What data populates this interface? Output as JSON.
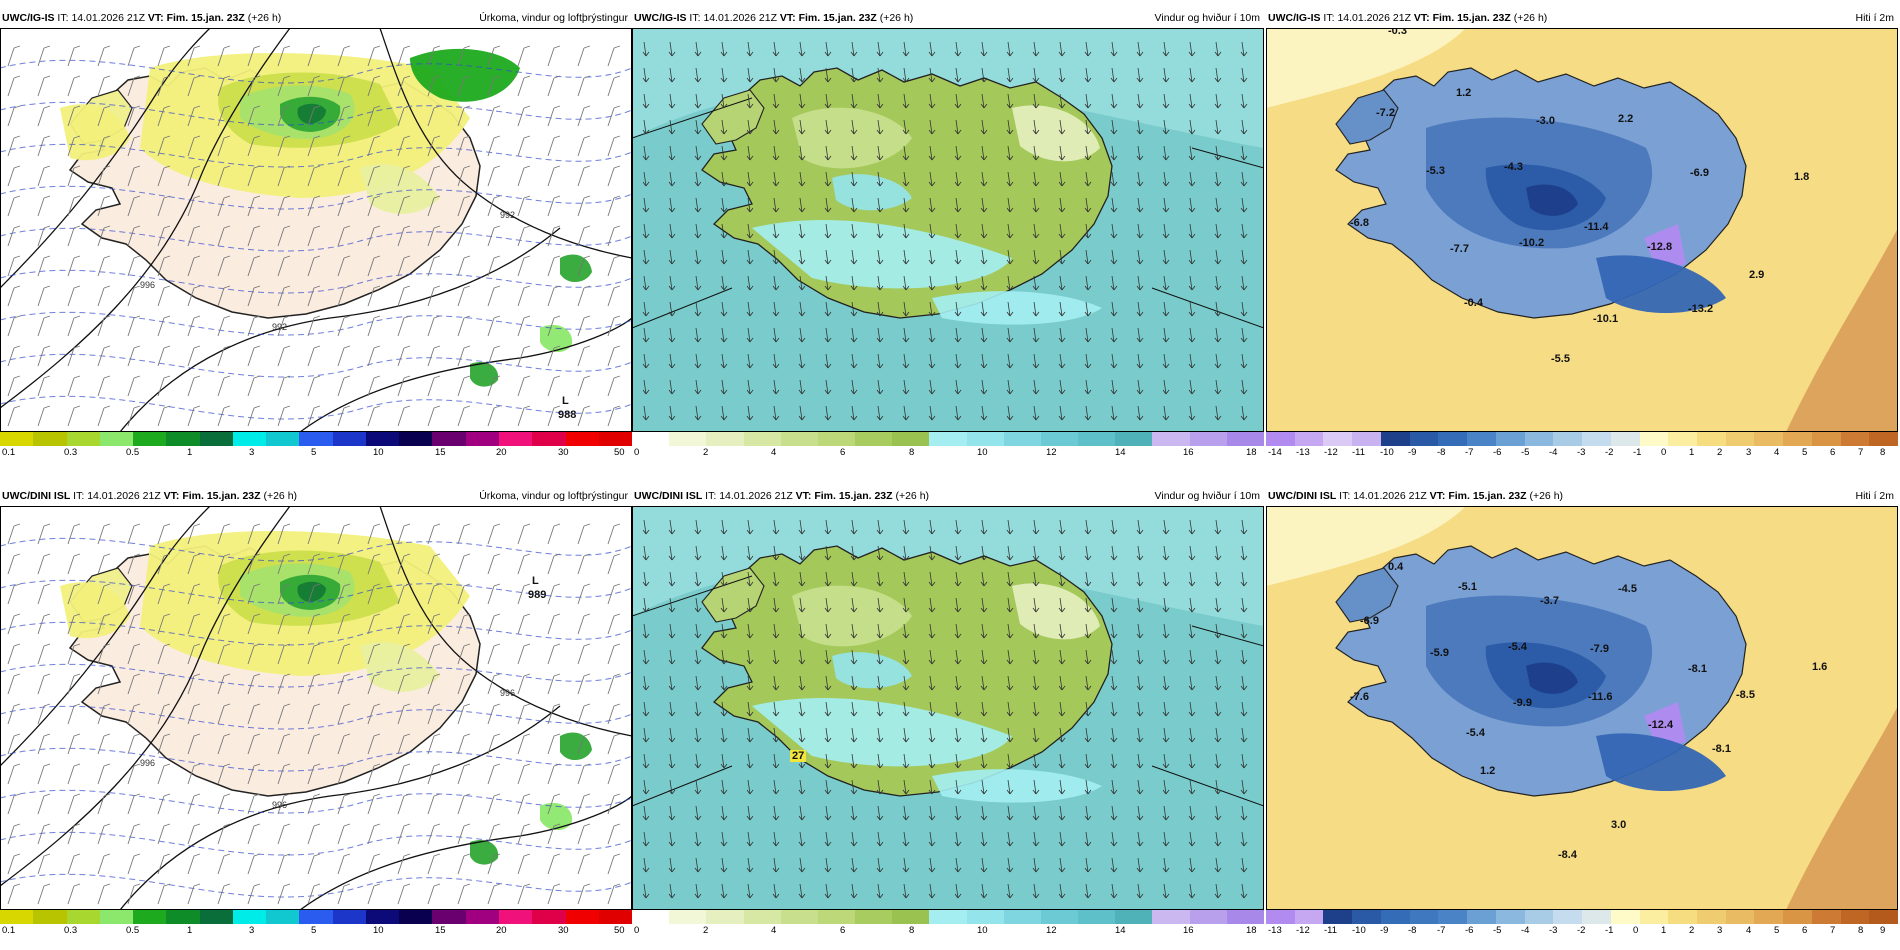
{
  "rows": [
    {
      "model": "UWC/IG-IS",
      "panels": [
        {
          "id": "precip",
          "model": "UWC/IG-IS",
          "it_label": "IT:",
          "it_value": "14.01.2026 21Z",
          "vt_label": "VT:",
          "vt_value": "Fim. 15.jan. 23Z",
          "lead": "(+26 h)",
          "title": "Úrkoma, vindur og loftþrýstingur",
          "low_label": "L",
          "low_value": "988",
          "isobar_labels": [
            "992",
            "996",
            "992"
          ],
          "colorbar": "precip"
        },
        {
          "id": "wind",
          "model": "UWC/IG-IS",
          "it_label": "IT:",
          "it_value": "14.01.2026 21Z",
          "vt_label": "VT:",
          "vt_value": "Fim. 15.jan. 23Z",
          "lead": "(+26 h)",
          "title": "Vindur og hviður í 10m",
          "colorbar": "wind"
        },
        {
          "id": "temp",
          "model": "UWC/IG-IS",
          "it_label": "IT:",
          "it_value": "14.01.2026 21Z",
          "vt_label": "VT:",
          "vt_value": "Fim. 15.jan. 23Z",
          "lead": "(+26 h)",
          "title": "Hiti í 2m",
          "colorbar": "temp1",
          "labels": [
            "-0.3",
            "1.2",
            "-7.2",
            "-3.0",
            "2.2",
            "-5.3",
            "-4.3",
            "-6.9",
            "1.8",
            "-6.8",
            "-11.4",
            "-10.2",
            "-7.7",
            "-12.8",
            "2.9",
            "-0.4",
            "-10.1",
            "-13.2",
            "-5.5"
          ]
        }
      ]
    },
    {
      "model": "UWC/DINI ISL",
      "panels": [
        {
          "id": "precip",
          "model": "UWC/DINI ISL",
          "it_label": "IT:",
          "it_value": "14.01.2026 21Z",
          "vt_label": "VT:",
          "vt_value": "Fim. 15.jan. 23Z",
          "lead": "(+26 h)",
          "title": "Úrkoma, vindur og loftþrýstingur",
          "low_label": "L",
          "low_value": "989",
          "isobar_labels": [
            "996",
            "996",
            "996"
          ],
          "colorbar": "precip"
        },
        {
          "id": "wind",
          "model": "UWC/DINI ISL",
          "it_label": "IT:",
          "it_value": "14.01.2026 21Z",
          "vt_label": "VT:",
          "vt_value": "Fim. 15.jan. 23Z",
          "lead": "(+26 h)",
          "title": "Vindur og hviður í 10m",
          "gust_label": "27",
          "colorbar": "wind"
        },
        {
          "id": "temp",
          "model": "UWC/DINI ISL",
          "it_label": "IT:",
          "it_value": "14.01.2026 21Z",
          "vt_label": "VT:",
          "vt_value": "Fim. 15.jan. 23Z",
          "lead": "(+26 h)",
          "title": "Hiti í 2m",
          "colorbar": "temp2",
          "labels": [
            "0.4",
            "-5.1",
            "-3.7",
            "-4.5",
            "-6.9",
            "-5.9",
            "-5.4",
            "-7.9",
            "-8.1",
            "1.6",
            "-7.6",
            "-9.9",
            "-11.6",
            "-12.4",
            "-8.5",
            "-5.4",
            "1.2",
            "-8.1",
            "3.0",
            "-8.4"
          ]
        }
      ]
    }
  ],
  "colorbars": {
    "precip": {
      "colors": [
        "#d8d800",
        "#b8c400",
        "#a8d830",
        "#8ce86c",
        "#1eaa1e",
        "#0e8c28",
        "#0a6e3a",
        "#00ece8",
        "#12c8d0",
        "#2a5cf0",
        "#1b36c8",
        "#0c0a78",
        "#0a0050",
        "#6a0070",
        "#a00080",
        "#f0127a",
        "#e0004a",
        "#f00000",
        "#e00000"
      ],
      "ticks": [
        "0.1",
        "0.3",
        "0.5",
        "1",
        "3",
        "5",
        "10",
        "15",
        "20",
        "30",
        "50"
      ]
    },
    "wind": {
      "colors": [
        "#ffffff",
        "#f2f7d8",
        "#e6efc0",
        "#d6e8a4",
        "#c8e08e",
        "#bcd878",
        "#a8cc60",
        "#9ac250",
        "#a4eef2",
        "#94e4ec",
        "#80d6e0",
        "#6ccad4",
        "#5ec0c8",
        "#4eb2b8",
        "#cbb8f0",
        "#b8a0ec",
        "#a888e8"
      ],
      "ticks": [
        "0",
        "2",
        "4",
        "6",
        "8",
        "10",
        "12",
        "14",
        "16",
        "18"
      ]
    },
    "temp1": {
      "colors": [
        "#b18bf0",
        "#c6a8f2",
        "#dccaf6",
        "#c8b2f0",
        "#1e3f8a",
        "#2a5aa6",
        "#346cb8",
        "#4a84c6",
        "#6aa0d4",
        "#8ab8de",
        "#a8cce6",
        "#c4dcee",
        "#dde8ea",
        "#fffbc8",
        "#fbeea0",
        "#f6de80",
        "#efcc70",
        "#e9bb62",
        "#e2a854",
        "#d99444",
        "#cc7a34",
        "#c06624"
      ],
      "ticks": [
        "-14",
        "-13",
        "-12",
        "-11",
        "-10",
        "-9",
        "-8",
        "-7",
        "-6",
        "-5",
        "-4",
        "-3",
        "-2",
        "-1",
        "0",
        "1",
        "2",
        "3",
        "4",
        "5",
        "6",
        "7",
        "8"
      ]
    },
    "temp2": {
      "colors": [
        "#b18bf0",
        "#c6a8f2",
        "#1e3f8a",
        "#2a5aa6",
        "#346cb8",
        "#4078bf",
        "#4a84c6",
        "#6aa0d4",
        "#8ab8de",
        "#a8cce6",
        "#c4dcee",
        "#dde8ea",
        "#fffbc8",
        "#fbeea0",
        "#f6de80",
        "#efcc70",
        "#e9bb62",
        "#e2a854",
        "#d99444",
        "#cc7a34",
        "#c06624",
        "#b45a1c"
      ],
      "ticks": [
        "-13",
        "-12",
        "-11",
        "-10",
        "-9",
        "-8",
        "-7",
        "-6",
        "-5",
        "-4",
        "-3",
        "-2",
        "-1",
        "0",
        "1",
        "2",
        "3",
        "4",
        "5",
        "6",
        "7",
        "8",
        "9"
      ]
    }
  }
}
